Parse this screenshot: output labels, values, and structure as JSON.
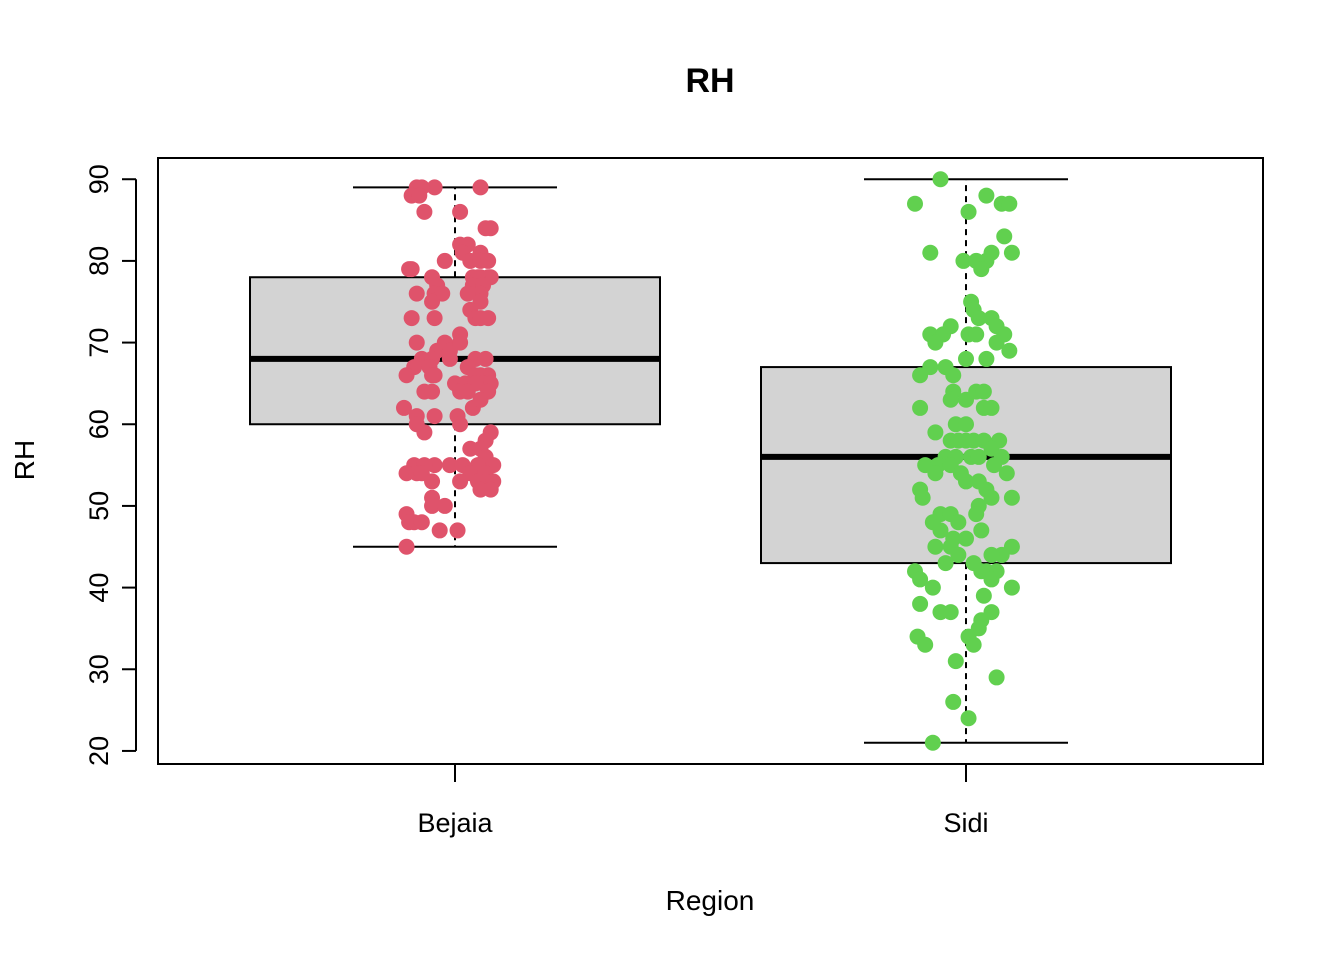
{
  "chart_data": {
    "type": "box",
    "title": "RH",
    "xlabel": "Region",
    "ylabel": "RH",
    "ylim": [
      18.4,
      92.6
    ],
    "yticks": [
      20,
      30,
      40,
      50,
      60,
      70,
      80,
      90
    ],
    "ytick_labels": [
      "20",
      "30",
      "40",
      "50",
      "60",
      "70",
      "80",
      "90"
    ],
    "grid": false,
    "categories": [
      "Bejaia",
      "Sidi"
    ],
    "box_fill": "#d3d3d3",
    "boxes": [
      {
        "name": "Bejaia",
        "whisker_low": 45,
        "q1": 60,
        "median": 68,
        "q3": 78,
        "whisker_high": 89,
        "color": "#df536b",
        "points": [
          [
            -0.15,
            89
          ],
          [
            -0.08,
            89
          ],
          [
            -0.13,
            89
          ],
          [
            -0.17,
            88
          ],
          [
            -0.14,
            88
          ],
          [
            0.1,
            89
          ],
          [
            -0.12,
            86
          ],
          [
            0.02,
            86
          ],
          [
            0.12,
            84
          ],
          [
            0.14,
            84
          ],
          [
            0.02,
            82
          ],
          [
            0.05,
            82
          ],
          [
            0.1,
            81
          ],
          [
            0.03,
            81
          ],
          [
            0.06,
            80
          ],
          [
            -0.04,
            80
          ],
          [
            0.1,
            80
          ],
          [
            0.13,
            80
          ],
          [
            -0.18,
            79
          ],
          [
            -0.17,
            79
          ],
          [
            -0.09,
            78
          ],
          [
            0.07,
            78
          ],
          [
            0.1,
            78
          ],
          [
            0.13,
            78
          ],
          [
            0.14,
            78
          ],
          [
            0.09,
            78
          ],
          [
            -0.07,
            77
          ],
          [
            0.07,
            77
          ],
          [
            0.11,
            77
          ],
          [
            -0.15,
            76
          ],
          [
            -0.08,
            76
          ],
          [
            -0.05,
            76
          ],
          [
            0.1,
            76
          ],
          [
            0.05,
            76
          ],
          [
            -0.09,
            75
          ],
          [
            0.1,
            75
          ],
          [
            0.06,
            74
          ],
          [
            -0.17,
            73
          ],
          [
            -0.08,
            73
          ],
          [
            0.08,
            73
          ],
          [
            0.1,
            73
          ],
          [
            0.13,
            73
          ],
          [
            0.02,
            71
          ],
          [
            -0.15,
            70
          ],
          [
            -0.04,
            70
          ],
          [
            -0.07,
            69
          ],
          [
            -0.02,
            69
          ],
          [
            0.02,
            70
          ],
          [
            -0.13,
            68
          ],
          [
            -0.09,
            68
          ],
          [
            -0.02,
            68
          ],
          [
            0.08,
            68
          ],
          [
            0.12,
            68
          ],
          [
            -0.16,
            67
          ],
          [
            -0.1,
            67
          ],
          [
            0.05,
            67
          ],
          [
            -0.19,
            66
          ],
          [
            -0.09,
            66
          ],
          [
            -0.08,
            66
          ],
          [
            0.1,
            66
          ],
          [
            0.13,
            66
          ],
          [
            0.08,
            66
          ],
          [
            0.0,
            65
          ],
          [
            0.04,
            65
          ],
          [
            0.11,
            65
          ],
          [
            0.14,
            65
          ],
          [
            0.08,
            65
          ],
          [
            -0.12,
            64
          ],
          [
            -0.09,
            64
          ],
          [
            0.02,
            64
          ],
          [
            0.05,
            64
          ],
          [
            0.13,
            64
          ],
          [
            -0.2,
            62
          ],
          [
            -0.15,
            61
          ],
          [
            -0.08,
            61
          ],
          [
            0.01,
            61
          ],
          [
            -0.15,
            60
          ],
          [
            -0.12,
            59
          ],
          [
            0.02,
            60
          ],
          [
            0.07,
            62
          ],
          [
            0.1,
            63
          ],
          [
            0.14,
            59
          ],
          [
            0.12,
            58
          ],
          [
            0.06,
            57
          ],
          [
            0.1,
            57
          ],
          [
            0.12,
            56
          ],
          [
            -0.08,
            55
          ],
          [
            -0.16,
            55
          ],
          [
            -0.12,
            55
          ],
          [
            -0.02,
            55
          ],
          [
            0.03,
            55
          ],
          [
            0.09,
            55
          ],
          [
            0.15,
            55
          ],
          [
            -0.19,
            54
          ],
          [
            -0.15,
            54
          ],
          [
            -0.13,
            54
          ],
          [
            0.06,
            54
          ],
          [
            0.12,
            54
          ],
          [
            -0.09,
            53
          ],
          [
            0.02,
            53
          ],
          [
            0.09,
            53
          ],
          [
            0.15,
            53
          ],
          [
            0.1,
            52
          ],
          [
            0.14,
            52
          ],
          [
            -0.09,
            51
          ],
          [
            -0.09,
            50
          ],
          [
            -0.04,
            50
          ],
          [
            -0.19,
            49
          ],
          [
            -0.16,
            48
          ],
          [
            -0.18,
            48
          ],
          [
            -0.13,
            48
          ],
          [
            -0.06,
            47
          ],
          [
            0.01,
            47
          ],
          [
            -0.19,
            45
          ]
        ]
      },
      {
        "name": "Sidi",
        "whisker_low": 21,
        "q1": 43,
        "median": 56,
        "q3": 67,
        "whisker_high": 90,
        "color": "#61d04f",
        "points": [
          [
            -0.1,
            90
          ],
          [
            0.08,
            88
          ],
          [
            0.14,
            87
          ],
          [
            0.17,
            87
          ],
          [
            -0.2,
            87
          ],
          [
            0.01,
            86
          ],
          [
            0.15,
            83
          ],
          [
            -0.14,
            81
          ],
          [
            0.1,
            81
          ],
          [
            0.18,
            81
          ],
          [
            0.08,
            80
          ],
          [
            -0.01,
            80
          ],
          [
            0.04,
            80
          ],
          [
            0.06,
            79
          ],
          [
            0.02,
            75
          ],
          [
            0.03,
            74
          ],
          [
            0.05,
            73
          ],
          [
            0.1,
            73
          ],
          [
            0.12,
            72
          ],
          [
            -0.14,
            71
          ],
          [
            -0.09,
            71
          ],
          [
            -0.12,
            70
          ],
          [
            -0.06,
            72
          ],
          [
            0.01,
            71
          ],
          [
            0.04,
            71
          ],
          [
            0.15,
            71
          ],
          [
            0.12,
            70
          ],
          [
            0.17,
            69
          ],
          [
            0.0,
            68
          ],
          [
            0.08,
            68
          ],
          [
            -0.14,
            67
          ],
          [
            -0.08,
            67
          ],
          [
            -0.05,
            66
          ],
          [
            -0.18,
            66
          ],
          [
            -0.05,
            64
          ],
          [
            0.0,
            63
          ],
          [
            0.04,
            64
          ],
          [
            0.07,
            64
          ],
          [
            -0.06,
            63
          ],
          [
            0.07,
            62
          ],
          [
            0.1,
            62
          ],
          [
            -0.18,
            62
          ],
          [
            -0.04,
            60
          ],
          [
            0.0,
            60
          ],
          [
            -0.12,
            59
          ],
          [
            -0.06,
            58
          ],
          [
            -0.03,
            58
          ],
          [
            0.0,
            58
          ],
          [
            0.03,
            58
          ],
          [
            0.07,
            58
          ],
          [
            0.13,
            58
          ],
          [
            0.1,
            57
          ],
          [
            -0.08,
            56
          ],
          [
            -0.04,
            56
          ],
          [
            0.02,
            56
          ],
          [
            0.05,
            56
          ],
          [
            0.14,
            56
          ],
          [
            0.11,
            55
          ],
          [
            0.16,
            54
          ],
          [
            -0.16,
            55
          ],
          [
            -0.11,
            55
          ],
          [
            -0.06,
            55
          ],
          [
            -0.12,
            54
          ],
          [
            -0.02,
            54
          ],
          [
            0.0,
            53
          ],
          [
            0.05,
            53
          ],
          [
            0.08,
            52
          ],
          [
            -0.18,
            52
          ],
          [
            -0.17,
            51
          ],
          [
            0.1,
            51
          ],
          [
            0.18,
            51
          ],
          [
            0.05,
            50
          ],
          [
            -0.1,
            49
          ],
          [
            -0.06,
            49
          ],
          [
            0.04,
            49
          ],
          [
            -0.13,
            48
          ],
          [
            -0.03,
            48
          ],
          [
            0.06,
            47
          ],
          [
            -0.1,
            47
          ],
          [
            -0.05,
            46
          ],
          [
            0.0,
            46
          ],
          [
            -0.12,
            45
          ],
          [
            -0.06,
            45
          ],
          [
            0.18,
            45
          ],
          [
            0.14,
            44
          ],
          [
            0.1,
            44
          ],
          [
            -0.03,
            44
          ],
          [
            -0.08,
            43
          ],
          [
            0.03,
            43
          ],
          [
            0.08,
            42
          ],
          [
            0.12,
            42
          ],
          [
            0.06,
            42
          ],
          [
            0.1,
            41
          ],
          [
            -0.2,
            42
          ],
          [
            -0.18,
            41
          ],
          [
            -0.13,
            40
          ],
          [
            0.18,
            40
          ],
          [
            0.07,
            39
          ],
          [
            -0.18,
            38
          ],
          [
            -0.06,
            37
          ],
          [
            -0.1,
            37
          ],
          [
            0.1,
            37
          ],
          [
            0.06,
            36
          ],
          [
            0.05,
            35
          ],
          [
            0.01,
            34
          ],
          [
            -0.19,
            34
          ],
          [
            0.03,
            33
          ],
          [
            -0.16,
            33
          ],
          [
            -0.04,
            31
          ],
          [
            0.12,
            29
          ],
          [
            -0.05,
            26
          ],
          [
            0.01,
            24
          ],
          [
            -0.13,
            21
          ]
        ]
      }
    ]
  }
}
